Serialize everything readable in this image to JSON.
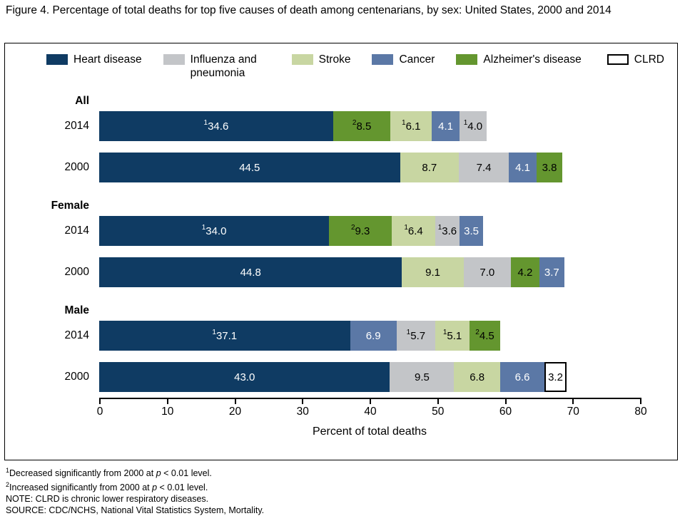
{
  "title": "Figure 4. Percentage of total deaths for top five causes of death among centenarians, by sex: United States, 2000 and 2014",
  "legend": [
    {
      "label": "Heart disease",
      "color": "#0f3b63",
      "text": "#ffffff",
      "border": false
    },
    {
      "label": "Influenza and pneumonia",
      "color": "#c3c5c8",
      "text": "#000000",
      "border": false,
      "wrap": true
    },
    {
      "label": "Stroke",
      "color": "#c8d6a2",
      "text": "#000000",
      "border": false
    },
    {
      "label": "Cancer",
      "color": "#5b78a6",
      "text": "#ffffff",
      "border": false
    },
    {
      "label": "Alzheimer's disease",
      "color": "#64962f",
      "text": "#000000",
      "border": false
    },
    {
      "label": "CLRD",
      "color": "#ffffff",
      "text": "#000000",
      "border": true
    }
  ],
  "chart_data": {
    "type": "bar",
    "orientation": "horizontal",
    "stacked": true,
    "xlabel": "Percent of total deaths",
    "xlim": [
      0,
      80
    ],
    "xticks": [
      0,
      10,
      20,
      30,
      40,
      50,
      60,
      70,
      80
    ],
    "grid": false,
    "legend_position": "top",
    "groups": [
      {
        "name": "All",
        "rows": [
          {
            "year": "2014",
            "segments": [
              {
                "cause": "Heart disease",
                "value": 34.6,
                "sup": "1"
              },
              {
                "cause": "Alzheimer's disease",
                "value": 8.5,
                "sup": "2"
              },
              {
                "cause": "Stroke",
                "value": 6.1,
                "sup": "1"
              },
              {
                "cause": "Cancer",
                "value": 4.1,
                "sup": null
              },
              {
                "cause": "Influenza and pneumonia",
                "value": 4.0,
                "sup": "1"
              }
            ]
          },
          {
            "year": "2000",
            "segments": [
              {
                "cause": "Heart disease",
                "value": 44.5,
                "sup": null
              },
              {
                "cause": "Stroke",
                "value": 8.7,
                "sup": null
              },
              {
                "cause": "Influenza and pneumonia",
                "value": 7.4,
                "sup": null
              },
              {
                "cause": "Cancer",
                "value": 4.1,
                "sup": null
              },
              {
                "cause": "Alzheimer's disease",
                "value": 3.8,
                "sup": null
              }
            ]
          }
        ]
      },
      {
        "name": "Female",
        "rows": [
          {
            "year": "2014",
            "segments": [
              {
                "cause": "Heart disease",
                "value": 34.0,
                "sup": "1"
              },
              {
                "cause": "Alzheimer's disease",
                "value": 9.3,
                "sup": "2"
              },
              {
                "cause": "Stroke",
                "value": 6.4,
                "sup": "1"
              },
              {
                "cause": "Influenza and pneumonia",
                "value": 3.6,
                "sup": "1"
              },
              {
                "cause": "Cancer",
                "value": 3.5,
                "sup": null
              }
            ]
          },
          {
            "year": "2000",
            "segments": [
              {
                "cause": "Heart disease",
                "value": 44.8,
                "sup": null
              },
              {
                "cause": "Stroke",
                "value": 9.1,
                "sup": null
              },
              {
                "cause": "Influenza and pneumonia",
                "value": 7.0,
                "sup": null
              },
              {
                "cause": "Alzheimer's disease",
                "value": 4.2,
                "sup": null
              },
              {
                "cause": "Cancer",
                "value": 3.7,
                "sup": null
              }
            ]
          }
        ]
      },
      {
        "name": "Male",
        "rows": [
          {
            "year": "2014",
            "segments": [
              {
                "cause": "Heart disease",
                "value": 37.1,
                "sup": "1"
              },
              {
                "cause": "Cancer",
                "value": 6.9,
                "sup": null
              },
              {
                "cause": "Influenza and pneumonia",
                "value": 5.7,
                "sup": "1"
              },
              {
                "cause": "Stroke",
                "value": 5.1,
                "sup": "1"
              },
              {
                "cause": "Alzheimer's disease",
                "value": 4.5,
                "sup": "2"
              }
            ]
          },
          {
            "year": "2000",
            "segments": [
              {
                "cause": "Heart disease",
                "value": 43.0,
                "sup": null
              },
              {
                "cause": "Influenza and pneumonia",
                "value": 9.5,
                "sup": null
              },
              {
                "cause": "Stroke",
                "value": 6.8,
                "sup": null
              },
              {
                "cause": "Cancer",
                "value": 6.6,
                "sup": null
              },
              {
                "cause": "CLRD",
                "value": 3.2,
                "sup": null
              }
            ]
          }
        ]
      }
    ]
  },
  "footnotes": [
    {
      "sup": "1",
      "parts": [
        {
          "t": "Decreased significantly from 2000 at "
        },
        {
          "t": "p",
          "i": true
        },
        {
          "t": " < 0.01 level."
        }
      ]
    },
    {
      "sup": "2",
      "parts": [
        {
          "t": "Increased significantly from 2000 at "
        },
        {
          "t": "p",
          "i": true
        },
        {
          "t": " < 0.01 level."
        }
      ]
    },
    {
      "sup": null,
      "parts": [
        {
          "t": "NOTE: CLRD is chronic lower respiratory diseases."
        }
      ]
    },
    {
      "sup": null,
      "parts": [
        {
          "t": "SOURCE: CDC/NCHS, National Vital Statistics System, Mortality."
        }
      ]
    }
  ]
}
